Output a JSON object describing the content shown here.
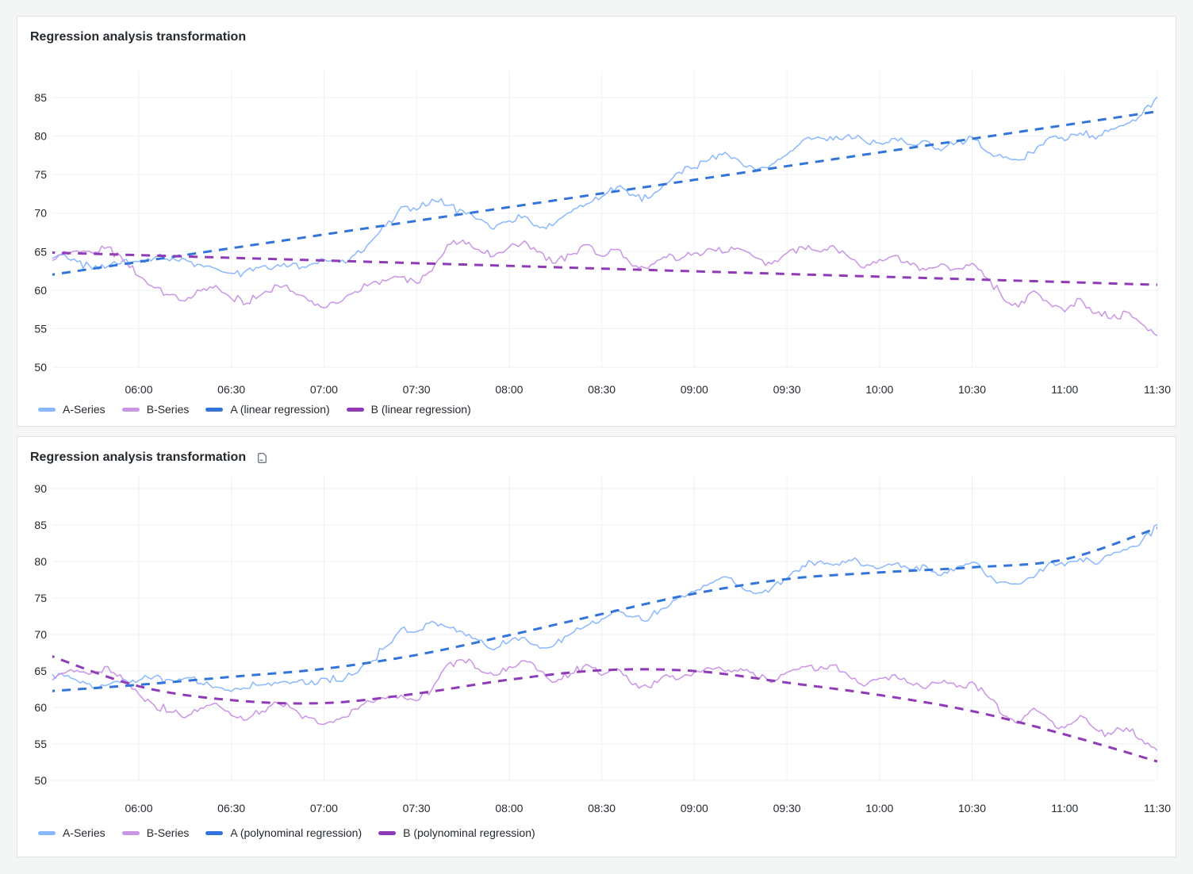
{
  "page": {
    "background_color": "#f4f5f5",
    "panel_background": "#ffffff"
  },
  "panels": [
    {
      "title": "Regression analysis transformation"
    },
    {
      "title": "Regression analysis transformation",
      "description_icon": "document-icon"
    }
  ],
  "chart_data": [
    {
      "type": "line",
      "title": "Regression analysis transformation",
      "x_first": "05:30",
      "x_last": "11:30",
      "x_interval_minutes": 5,
      "x_tick_labels": [
        "06:00",
        "06:30",
        "07:00",
        "07:30",
        "08:00",
        "08:30",
        "09:00",
        "09:30",
        "10:00",
        "10:30",
        "11:00",
        "11:30"
      ],
      "y_ticks": [
        50,
        55,
        60,
        65,
        70,
        75,
        80,
        85
      ],
      "ylim": [
        50,
        88.5
      ],
      "grid": true,
      "legend_position": "bottom",
      "series": [
        {
          "name": "A-Series",
          "color": "#8AB8FF",
          "style": "solid",
          "values": [
            64.2,
            64.6,
            63.7,
            62.7,
            63.1,
            63.9,
            63.7,
            64.2,
            63.8,
            64.0,
            63.3,
            62.8,
            62.2,
            62.6,
            63.1,
            63.3,
            63.5,
            63.2,
            64.0,
            63.6,
            64.6,
            66.2,
            68.3,
            70.8,
            70.4,
            71.8,
            71.0,
            70.3,
            69.2,
            67.9,
            69.0,
            69.6,
            68.1,
            68.7,
            70.1,
            71.2,
            72.1,
            73.4,
            72.4,
            71.9,
            73.6,
            75.3,
            75.9,
            77.0,
            77.9,
            76.6,
            75.6,
            76.3,
            77.6,
            79.4,
            79.9,
            79.5,
            80.2,
            79.4,
            79.1,
            79.7,
            78.9,
            79.4,
            78.1,
            79.2,
            79.9,
            77.9,
            77.2,
            76.9,
            77.8,
            79.8,
            79.4,
            80.4,
            79.6,
            80.9,
            81.6,
            82.8,
            85.1
          ]
        },
        {
          "name": "B-Series",
          "color": "#CA95E5",
          "style": "solid",
          "values": [
            63.6,
            64.7,
            65.1,
            64.8,
            65.6,
            63.8,
            61.8,
            60.3,
            59.4,
            58.6,
            59.9,
            60.6,
            58.9,
            58.3,
            59.5,
            60.6,
            59.8,
            58.6,
            57.7,
            58.4,
            59.8,
            60.8,
            61.2,
            61.7,
            60.9,
            62.5,
            65.9,
            66.5,
            65.3,
            64.4,
            65.6,
            66.4,
            65.0,
            63.5,
            64.6,
            65.9,
            64.4,
            65.3,
            63.1,
            62.8,
            64.3,
            63.9,
            64.8,
            65.4,
            64.9,
            65.3,
            64.2,
            63.4,
            64.8,
            65.6,
            65.1,
            65.8,
            64.3,
            62.9,
            64.0,
            64.5,
            63.3,
            62.6,
            63.4,
            62.8,
            63.5,
            61.5,
            58.9,
            57.8,
            59.9,
            58.3,
            57.2,
            58.9,
            57.0,
            56.3,
            57.2,
            55.6,
            54.1
          ]
        },
        {
          "name": "A (linear regression)",
          "color": "#3274D9",
          "style": "dashed",
          "points": [
            [
              "05:30",
              61.9
            ],
            [
              "11:30",
              83.2
            ]
          ]
        },
        {
          "name": "B (linear regression)",
          "color": "#8F3BB8",
          "style": "dashed",
          "points": [
            [
              "05:30",
              64.9
            ],
            [
              "11:30",
              60.7
            ]
          ]
        }
      ]
    },
    {
      "type": "line",
      "title": "Regression analysis transformation",
      "x_first": "05:30",
      "x_last": "11:30",
      "x_interval_minutes": 5,
      "x_tick_labels": [
        "06:00",
        "06:30",
        "07:00",
        "07:30",
        "08:00",
        "08:30",
        "09:00",
        "09:30",
        "10:00",
        "10:30",
        "11:00",
        "11:30"
      ],
      "y_ticks": [
        50,
        55,
        60,
        65,
        70,
        75,
        80,
        85,
        90
      ],
      "ylim": [
        50,
        92
      ],
      "grid": true,
      "legend_position": "bottom",
      "series": [
        {
          "name": "A-Series",
          "color": "#8AB8FF",
          "style": "solid",
          "values": [
            64.2,
            64.6,
            63.7,
            62.7,
            63.1,
            63.9,
            63.7,
            64.2,
            63.8,
            64.0,
            63.3,
            62.8,
            62.2,
            62.6,
            63.1,
            63.3,
            63.5,
            63.2,
            64.0,
            63.6,
            64.6,
            66.2,
            68.3,
            70.8,
            70.4,
            71.8,
            71.0,
            70.3,
            69.2,
            67.9,
            69.0,
            69.6,
            68.1,
            68.7,
            70.1,
            71.2,
            72.1,
            73.4,
            72.4,
            71.9,
            73.6,
            75.3,
            75.9,
            77.0,
            77.9,
            76.6,
            75.6,
            76.3,
            77.6,
            79.4,
            79.9,
            79.5,
            80.2,
            79.4,
            79.1,
            79.7,
            78.9,
            79.4,
            78.1,
            79.2,
            79.9,
            77.9,
            77.2,
            76.9,
            77.8,
            79.8,
            79.4,
            80.4,
            79.6,
            80.9,
            81.6,
            82.8,
            85.1
          ]
        },
        {
          "name": "B-Series",
          "color": "#CA95E5",
          "style": "solid",
          "values": [
            63.6,
            64.7,
            65.1,
            64.8,
            65.6,
            63.8,
            61.8,
            60.3,
            59.4,
            58.6,
            59.9,
            60.6,
            58.9,
            58.3,
            59.5,
            60.6,
            59.8,
            58.6,
            57.7,
            58.4,
            59.8,
            60.8,
            61.2,
            61.7,
            60.9,
            62.5,
            65.9,
            66.5,
            65.3,
            64.4,
            65.6,
            66.4,
            65.0,
            63.5,
            64.6,
            65.9,
            64.4,
            65.3,
            63.1,
            62.8,
            64.3,
            63.9,
            64.8,
            65.4,
            64.9,
            65.3,
            64.2,
            63.4,
            64.8,
            65.6,
            65.1,
            65.8,
            64.3,
            62.9,
            64.0,
            64.5,
            63.3,
            62.6,
            63.4,
            62.8,
            63.5,
            61.5,
            58.9,
            57.8,
            59.9,
            58.3,
            57.2,
            58.9,
            57.0,
            56.3,
            57.2,
            55.6,
            54.1
          ]
        },
        {
          "name": "A (polynominal regression)",
          "color": "#3274D9",
          "style": "dashed",
          "points": [
            [
              "05:30",
              62.2
            ],
            [
              "06:00",
              63.1
            ],
            [
              "06:30",
              64.2
            ],
            [
              "07:00",
              65.3
            ],
            [
              "07:30",
              67.2
            ],
            [
              "08:00",
              69.9
            ],
            [
              "08:30",
              72.8
            ],
            [
              "09:00",
              75.6
            ],
            [
              "09:30",
              77.6
            ],
            [
              "10:00",
              78.5
            ],
            [
              "10:30",
              79.2
            ],
            [
              "11:00",
              80.3
            ],
            [
              "11:30",
              84.6
            ]
          ]
        },
        {
          "name": "B (polynominal regression)",
          "color": "#8F3BB8",
          "style": "dashed",
          "points": [
            [
              "05:30",
              67.3
            ],
            [
              "06:00",
              62.9
            ],
            [
              "06:30",
              61.0
            ],
            [
              "07:00",
              60.6
            ],
            [
              "07:30",
              61.9
            ],
            [
              "08:00",
              63.8
            ],
            [
              "08:30",
              65.1
            ],
            [
              "09:00",
              65.0
            ],
            [
              "09:30",
              63.4
            ],
            [
              "10:00",
              61.7
            ],
            [
              "10:30",
              59.5
            ],
            [
              "11:00",
              56.3
            ],
            [
              "11:30",
              52.6
            ]
          ]
        }
      ]
    }
  ]
}
